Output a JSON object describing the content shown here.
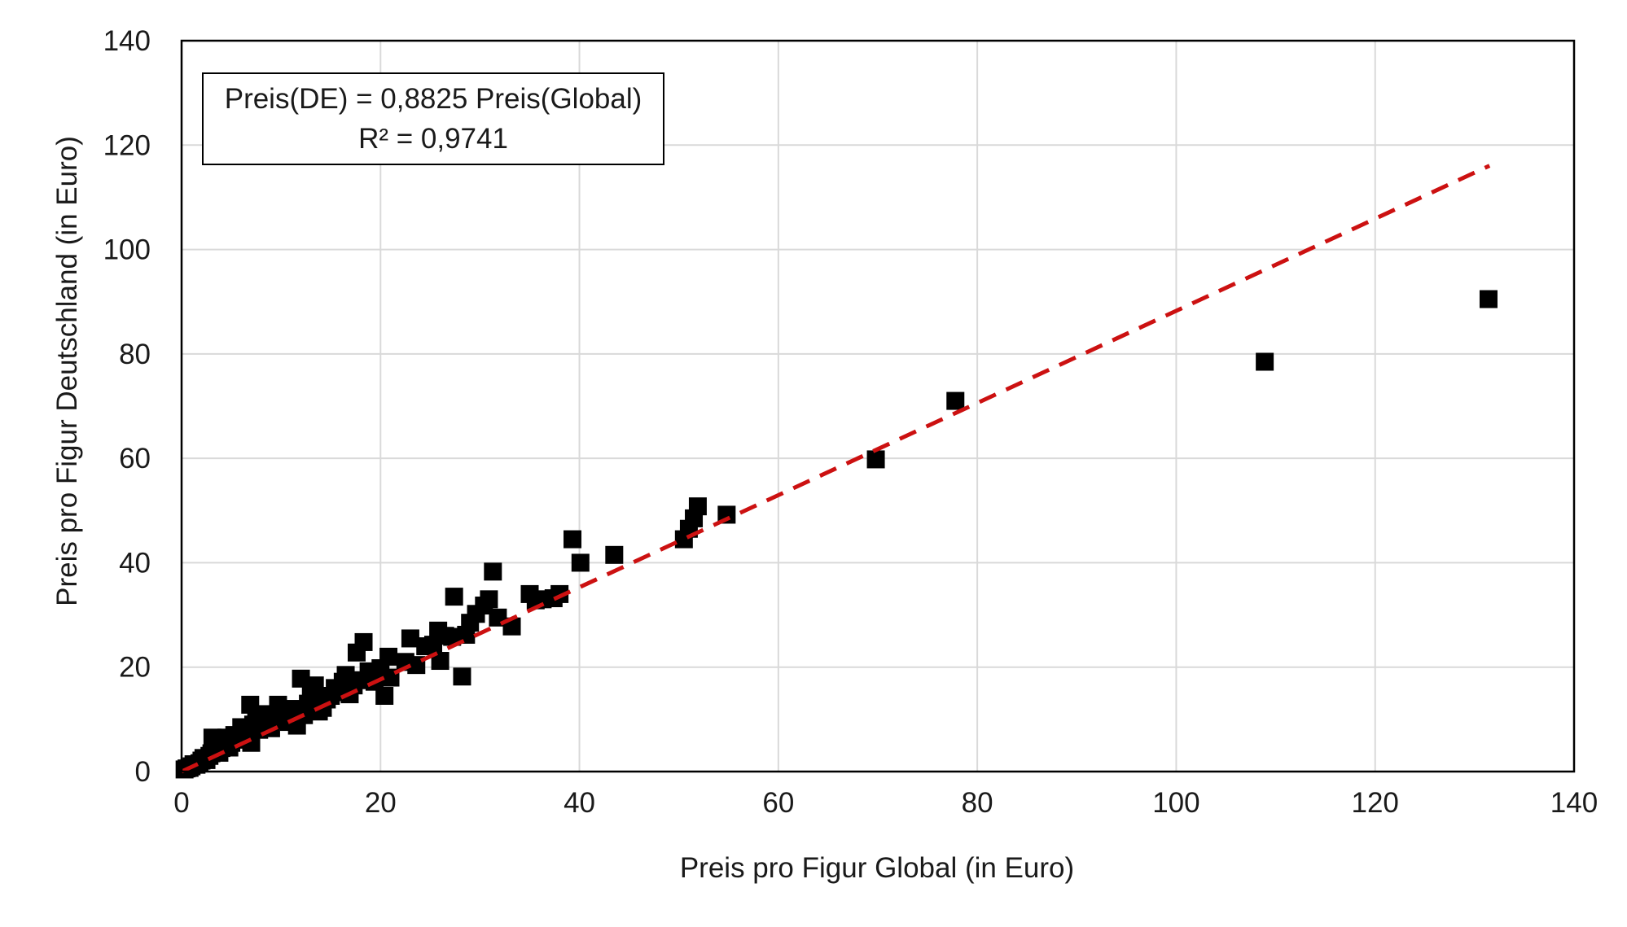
{
  "chart_data": {
    "type": "scatter",
    "xlabel": "Preis pro Figur Global (in Euro)",
    "ylabel": "Preis pro Figur Deutschland (in Euro)",
    "xlim": [
      0,
      140
    ],
    "ylim": [
      0,
      140
    ],
    "xticks": [
      "0",
      "20",
      "40",
      "60",
      "80",
      "100",
      "120",
      "140"
    ],
    "yticks": [
      "0",
      "20",
      "40",
      "60",
      "80",
      "100",
      "120",
      "140"
    ],
    "grid": true,
    "legend": "none",
    "equation_box": {
      "line1": "Preis(DE) = 0,8825 Preis(Global)",
      "line2": "R² = 0,9741"
    },
    "trendline": {
      "slope": 0.8825,
      "x_range": [
        0,
        131.5
      ],
      "color": "#cc1111",
      "style": "dashed"
    },
    "marker_color": "#000000",
    "series": [
      {
        "points": [
          [
            0.3,
            0.4
          ],
          [
            0.5,
            0.6
          ],
          [
            0.8,
            0.7
          ],
          [
            1.0,
            1.0
          ],
          [
            1.2,
            1.4
          ],
          [
            1.5,
            1.3
          ],
          [
            1.8,
            1.6
          ],
          [
            2.0,
            2.1
          ],
          [
            2.2,
            2.6
          ],
          [
            2.5,
            2.2
          ],
          [
            2.8,
            3.0
          ],
          [
            3.0,
            3.5
          ],
          [
            3.1,
            6.5
          ],
          [
            3.4,
            4.2
          ],
          [
            3.8,
            3.6
          ],
          [
            4.0,
            4.5
          ],
          [
            4.3,
            5.2
          ],
          [
            4.5,
            6.5
          ],
          [
            4.8,
            4.6
          ],
          [
            5.0,
            5.5
          ],
          [
            5.3,
            7.0
          ],
          [
            5.6,
            6.1
          ],
          [
            6.0,
            8.5
          ],
          [
            6.3,
            6.2
          ],
          [
            6.6,
            7.4
          ],
          [
            6.9,
            12.8
          ],
          [
            7.0,
            5.5
          ],
          [
            7.2,
            9.0
          ],
          [
            7.5,
            10.8
          ],
          [
            7.8,
            8.0
          ],
          [
            8.2,
            9.2
          ],
          [
            8.6,
            11.0
          ],
          [
            9.0,
            8.3
          ],
          [
            9.3,
            9.8
          ],
          [
            9.7,
            12.8
          ],
          [
            10.0,
            10.5
          ],
          [
            10.4,
            11.2
          ],
          [
            10.8,
            9.5
          ],
          [
            11.2,
            12.0
          ],
          [
            11.6,
            8.8
          ],
          [
            12.0,
            17.8
          ],
          [
            12.3,
            10.8
          ],
          [
            12.7,
            13.0
          ],
          [
            13.0,
            15.0
          ],
          [
            13.4,
            16.5
          ],
          [
            13.8,
            11.5
          ],
          [
            14.2,
            12.2
          ],
          [
            14.6,
            13.8
          ],
          [
            15.0,
            14.5
          ],
          [
            15.4,
            16.0
          ],
          [
            15.8,
            15.2
          ],
          [
            16.2,
            17.2
          ],
          [
            16.5,
            18.5
          ],
          [
            16.9,
            14.8
          ],
          [
            17.3,
            16.5
          ],
          [
            17.6,
            22.8
          ],
          [
            18.0,
            17.5
          ],
          [
            18.3,
            24.8
          ],
          [
            18.8,
            19.2
          ],
          [
            19.4,
            17.2
          ],
          [
            20.0,
            19.8
          ],
          [
            20.4,
            14.5
          ],
          [
            20.8,
            22.0
          ],
          [
            21.0,
            18.0
          ],
          [
            22.5,
            21.0
          ],
          [
            23.0,
            25.5
          ],
          [
            23.6,
            20.4
          ],
          [
            24.5,
            24.0
          ],
          [
            25.3,
            24.3
          ],
          [
            25.8,
            27.0
          ],
          [
            26.0,
            21.2
          ],
          [
            26.5,
            26.0
          ],
          [
            27.2,
            25.8
          ],
          [
            27.4,
            33.5
          ],
          [
            28.2,
            18.2
          ],
          [
            28.6,
            26.2
          ],
          [
            29.0,
            28.5
          ],
          [
            29.6,
            30.2
          ],
          [
            30.4,
            31.8
          ],
          [
            30.9,
            33.0
          ],
          [
            31.3,
            38.3
          ],
          [
            31.8,
            29.5
          ],
          [
            33.2,
            27.8
          ],
          [
            35.0,
            34.0
          ],
          [
            35.6,
            32.8
          ],
          [
            36.3,
            33.0
          ],
          [
            37.4,
            33.2
          ],
          [
            38.0,
            34.0
          ],
          [
            39.3,
            44.5
          ],
          [
            40.1,
            40.0
          ],
          [
            43.5,
            41.5
          ],
          [
            50.5,
            44.5
          ],
          [
            51.0,
            46.5
          ],
          [
            51.5,
            48.5
          ],
          [
            51.9,
            50.8
          ],
          [
            54.8,
            49.2
          ],
          [
            69.8,
            59.8
          ],
          [
            77.8,
            71.0
          ],
          [
            108.9,
            78.5
          ],
          [
            131.4,
            90.5
          ]
        ]
      }
    ]
  }
}
